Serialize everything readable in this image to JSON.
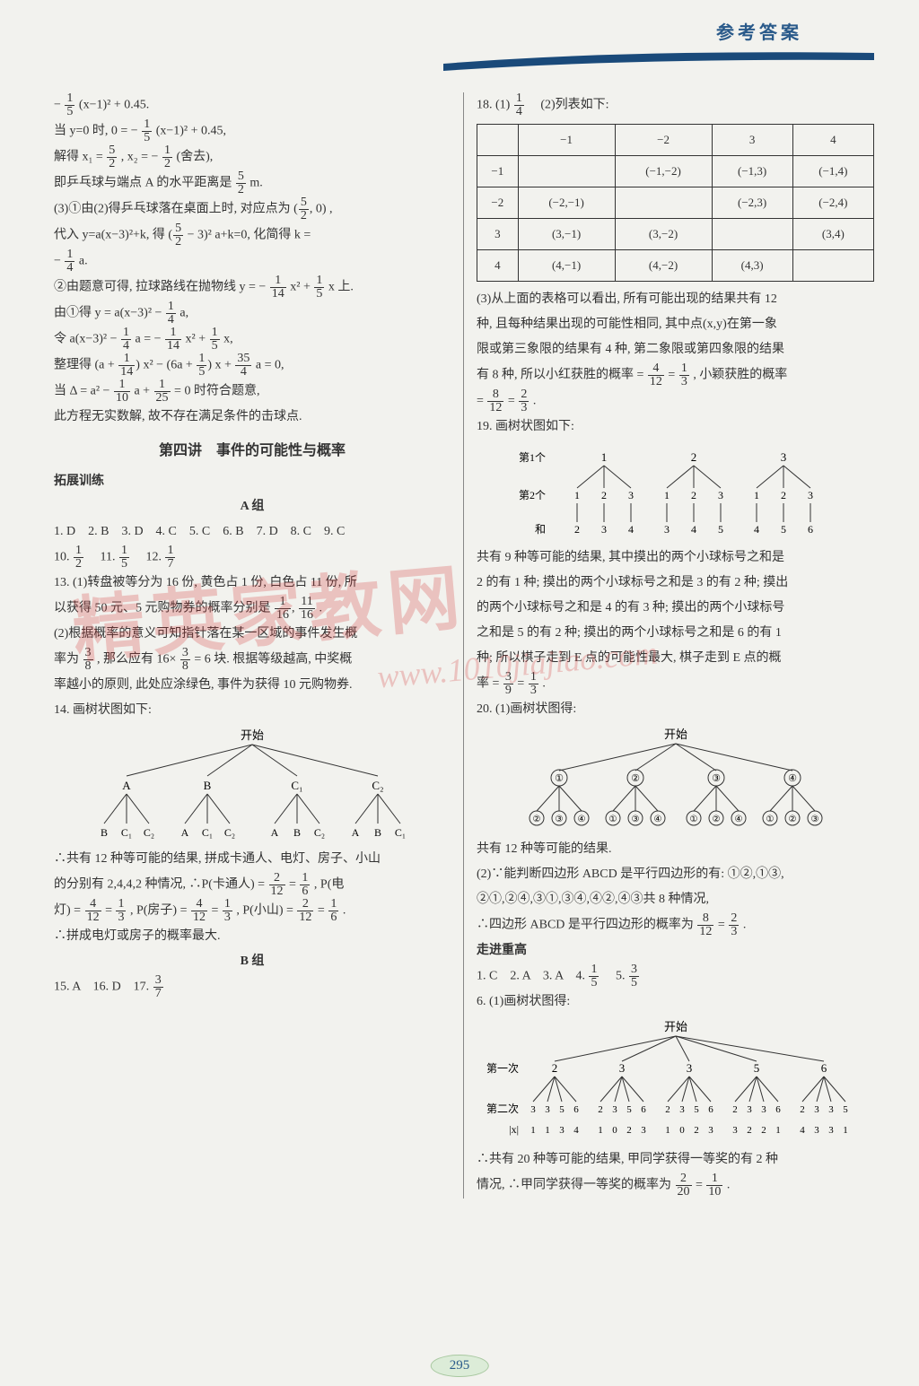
{
  "header": {
    "title": "参考答案"
  },
  "page_number": "295",
  "watermark": {
    "main": "精英家教网",
    "url": "www.1010jiajiao.com"
  },
  "left": {
    "l1": "− ",
    "l1b": "(x−1)² + 0.45.",
    "l2": "当 y=0 时, 0 = − ",
    "l2b": "(x−1)² + 0.45,",
    "l3a": "解得 x₁ = ",
    "l3b": ", x₂ = − ",
    "l3c": "(舍去),",
    "l4": "即乒乓球与端点 A 的水平距离是 ",
    "l4b": " m.",
    "l5a": "(3)①由(2)得乒乓球落在桌面上时, 对应点为",
    "l5b": ",",
    "l6a": "代入 y=a(x−3)²+k, 得",
    "l6b": " a+k=0, 化简得 k =",
    "l7": "− ",
    "l7b": "a.",
    "l8a": "②由题意可得, 拉球路线在抛物线 y = − ",
    "l8b": "x² + ",
    "l8c": "x 上.",
    "l9a": "由①得 y = a(x−3)² − ",
    "l9b": "a,",
    "l10a": "令 a(x−3)² − ",
    "l10b": "a = − ",
    "l10c": "x² + ",
    "l10d": "x,",
    "l11a": "整理得",
    "l11b": "x² −",
    "l11c": "x + ",
    "l11d": "a = 0,",
    "l12a": "当 Δ = a² − ",
    "l12b": "a + ",
    "l12c": " = 0 时符合题意,",
    "l13": "此方程无实数解, 故不存在满足条件的击球点.",
    "section_title": "第四讲　事件的可能性与概率",
    "subhead1": "拓展训练",
    "groupA": "A 组",
    "ans_row1": "1. D　2. B　3. D　4. C　5. C　6. B　7. D　8. C　9. C",
    "a10": "10. ",
    "a11": "　11. ",
    "a12": "　12. ",
    "q13a": "13. (1)转盘被等分为 16 份, 黄色占 1 份, 白色占 11 份, 所",
    "q13b": "以获得 50 元、5 元购物券的概率分别是 ",
    "q13c": ".",
    "q13d": "(2)根据概率的意义可知指针落在某一区域的事件发生概",
    "q13e": "率为 ",
    "q13f": ", 那么应有 16×",
    "q13g": " = 6 块. 根据等级越高, 中奖概",
    "q13h": "率越小的原则, 此处应涂绿色, 事件为获得 10 元购物券.",
    "q14": "14. 画树状图如下:",
    "tree14_root": "开始",
    "tree14_level1": [
      "A",
      "B",
      "C₁",
      "C₂"
    ],
    "tree14_children": [
      "B",
      "C₁",
      "C₂",
      "A",
      "C₁",
      "C₂",
      "A",
      "B",
      "C₂",
      "A",
      "B",
      "C₁"
    ],
    "q14b1": "∴共有 12 种等可能的结果, 拼成卡通人、电灯、房子、小山",
    "q14b2": "的分别有 2,4,4,2 种情况, ∴P(卡通人) = ",
    "q14b3": ", P(电",
    "q14b4": "灯) = ",
    "q14b5": ", P(房子) = ",
    "q14b6": ", P(小山) = ",
    "q14b7": ".",
    "q14c": "∴拼成电灯或房子的概率最大.",
    "groupB": "B 组",
    "q15": "15. A　16. D　17. "
  },
  "right": {
    "q18a": "18. (1)",
    "q18b": "　(2)列表如下:",
    "table": {
      "headers": [
        "",
        "−1",
        "−2",
        "3",
        "4"
      ],
      "rows": [
        [
          "−1",
          "",
          "(−1,−2)",
          "(−1,3)",
          "(−1,4)"
        ],
        [
          "−2",
          "(−2,−1)",
          "",
          "(−2,3)",
          "(−2,4)"
        ],
        [
          "3",
          "(3,−1)",
          "(3,−2)",
          "",
          "(3,4)"
        ],
        [
          "4",
          "(4,−1)",
          "(4,−2)",
          "(4,3)",
          ""
        ]
      ]
    },
    "q18c1": "(3)从上面的表格可以看出, 所有可能出现的结果共有 12",
    "q18c2": "种, 且每种结果出现的可能性相同, 其中点(x,y)在第一象",
    "q18c3": "限或第三象限的结果有 4 种, 第二象限或第四象限的结果",
    "q18c4a": "有 8 种, 所以小红获胜的概率 = ",
    "q18c4b": ", 小颖获胜的概率",
    "q18c5": " = ",
    "q18c6": ".",
    "q19": "19. 画树状图如下:",
    "tree19_l1": "第1个",
    "tree19_l2": "第2个",
    "tree19_top": [
      "1",
      "2",
      "3"
    ],
    "tree19_mid": [
      "1",
      "2",
      "3",
      "1",
      "2",
      "3",
      "1",
      "2",
      "3"
    ],
    "tree19_sum": "和",
    "tree19_sums": [
      "2",
      "3",
      "4",
      "3",
      "4",
      "5",
      "4",
      "5",
      "6"
    ],
    "q19b1": "共有 9 种等可能的结果, 其中摸出的两个小球标号之和是",
    "q19b2": "2 的有 1 种; 摸出的两个小球标号之和是 3 的有 2 种; 摸出",
    "q19b3": "的两个小球标号之和是 4 的有 3 种; 摸出的两个小球标号",
    "q19b4": "之和是 5 的有 2 种; 摸出的两个小球标号之和是 6 的有 1",
    "q19b5": "种; 所以棋子走到 E 点的可能性最大, 棋子走到 E 点的概",
    "q19c": "率 = ",
    "q19d": ".",
    "q20": "20. (1)画树状图得:",
    "tree20_root": "开始",
    "tree20_top": [
      "①",
      "②",
      "③",
      "④"
    ],
    "tree20_children": [
      "②",
      "③",
      "④",
      "①",
      "③",
      "④",
      "①",
      "②",
      "④",
      "①",
      "②",
      "③"
    ],
    "q20b": "共有 12 种等可能的结果.",
    "q20c1": "(2)∵能判断四边形 ABCD 是平行四边形的有: ①②,①③,",
    "q20c2": "②①,②④,③①,③④,④②,④③共 8 种情况,",
    "q20d": "∴四边形 ABCD 是平行四边形的概率为 ",
    "q20e": ".",
    "subhead2": "走进重高",
    "ans2_row": "1. C　2. A　3. A　4. ",
    "ans2_5": "　5. ",
    "q6": "6. (1)画树状图得:",
    "tree6_root": "开始",
    "tree6_l1": "第一次",
    "tree6_l2": "第二次",
    "tree6_l3": "|x|",
    "tree6_top": [
      "2",
      "3",
      "3",
      "5",
      "6"
    ],
    "tree6_children": [
      "3 3 5 6",
      "2 3 5 6",
      "2 3 5 6",
      "2 3 3 6",
      "2 3 3 5"
    ],
    "tree6_abs": [
      "1 1 3 4",
      "1 0 2 3",
      "1 0 2 3",
      "3 2 2 1",
      "4 3 3 1"
    ],
    "q6b1": "∴共有 20 种等可能的结果, 甲同学获得一等奖的有 2 种",
    "q6b2": "情况, ∴甲同学获得一等奖的概率为 ",
    "q6c": "."
  },
  "fractions": {
    "f1_5": {
      "n": "1",
      "d": "5"
    },
    "f5_2": {
      "n": "5",
      "d": "2"
    },
    "f1_2": {
      "n": "1",
      "d": "2"
    },
    "f1_4": {
      "n": "1",
      "d": "4"
    },
    "f1_14": {
      "n": "1",
      "d": "14"
    },
    "f35_4": {
      "n": "35",
      "d": "4"
    },
    "f1_10": {
      "n": "1",
      "d": "10"
    },
    "f1_25": {
      "n": "1",
      "d": "25"
    },
    "f1_7": {
      "n": "1",
      "d": "7"
    },
    "f1_16": {
      "n": "1",
      "d": "16"
    },
    "f11_16": {
      "n": "11",
      "d": "16"
    },
    "f3_8": {
      "n": "3",
      "d": "8"
    },
    "f2_12": {
      "n": "2",
      "d": "12"
    },
    "f1_6": {
      "n": "1",
      "d": "6"
    },
    "f4_12": {
      "n": "4",
      "d": "12"
    },
    "f1_3": {
      "n": "1",
      "d": "3"
    },
    "f3_7": {
      "n": "3",
      "d": "7"
    },
    "f8_12": {
      "n": "8",
      "d": "12"
    },
    "f2_3": {
      "n": "2",
      "d": "3"
    },
    "f3_9": {
      "n": "3",
      "d": "9"
    },
    "f3_5": {
      "n": "3",
      "d": "5"
    },
    "f2_20": {
      "n": "2",
      "d": "20"
    },
    "f1_10b": {
      "n": "1",
      "d": "10"
    }
  }
}
